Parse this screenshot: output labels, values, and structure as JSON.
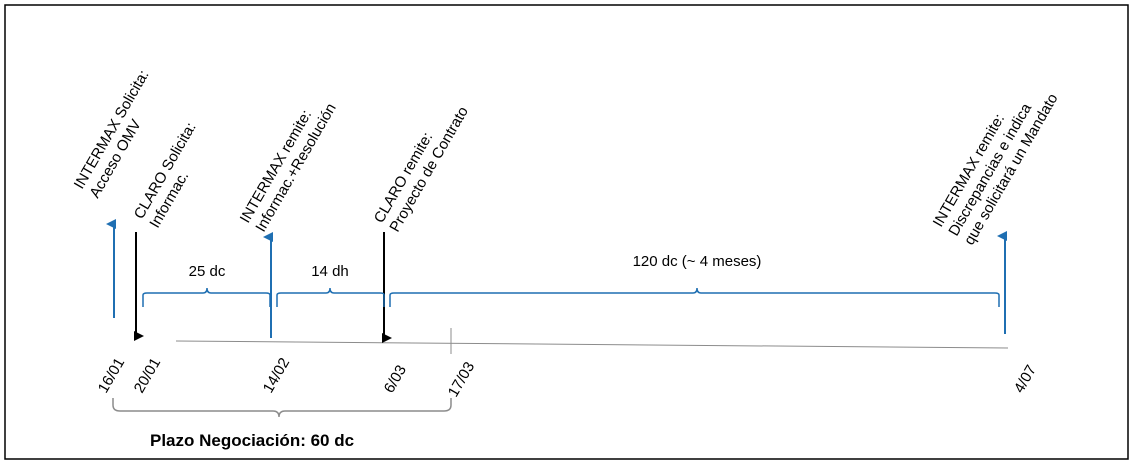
{
  "events": [
    {
      "id": "ev1",
      "lines": [
        "INTERMAX Solicita:",
        "Acceso OMV"
      ]
    },
    {
      "id": "ev2",
      "lines": [
        "CLARO Solicita:",
        "Informac."
      ]
    },
    {
      "id": "ev3",
      "lines": [
        "INTERMAX remite:",
        "Informac.+Resolución"
      ]
    },
    {
      "id": "ev4",
      "lines": [
        "CLARO remite:",
        "Proyecto de Contrato"
      ]
    },
    {
      "id": "ev5",
      "lines": [
        "INTERMAX remite:",
        "Discrepancias e indica",
        "que solicitará un Mandato"
      ]
    }
  ],
  "durations": [
    "25 dc",
    "14 dh",
    "120 dc (~ 4 meses)"
  ],
  "dates": [
    "16/01",
    "20/01",
    "14/02",
    "6/03",
    "17/03",
    "4/07"
  ],
  "total_label": "Plazo Negociación: 60 dc",
  "colors": {
    "blue": "#1f6fb2",
    "black": "#000000",
    "gray": "#7f7f7f"
  }
}
